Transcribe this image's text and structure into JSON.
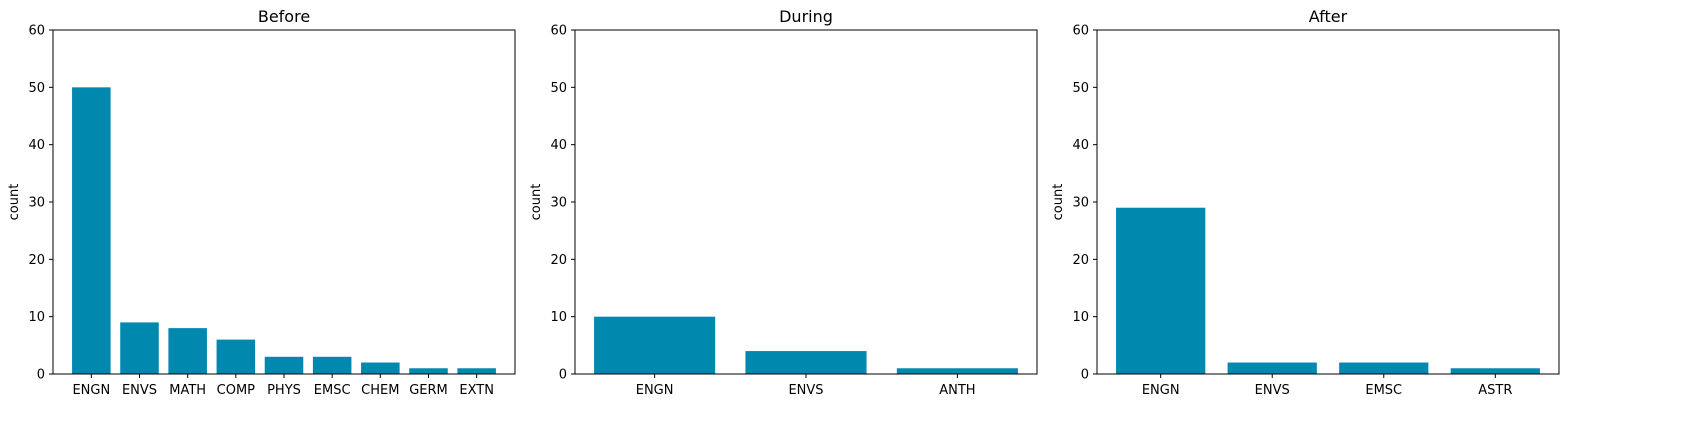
{
  "chart_data": [
    {
      "type": "bar",
      "title": "Before",
      "xlabel": "",
      "ylabel": "count",
      "ylim": [
        0,
        60
      ],
      "yticks": [
        0,
        10,
        20,
        30,
        40,
        50,
        60
      ],
      "categories": [
        "ENGN",
        "ENVS",
        "MATH",
        "COMP",
        "PHYS",
        "EMSC",
        "CHEM",
        "GERM",
        "EXTN"
      ],
      "values": [
        50,
        9,
        8,
        6,
        3,
        3,
        2,
        1,
        1
      ],
      "color": "#0088ae",
      "grid": false
    },
    {
      "type": "bar",
      "title": "During",
      "xlabel": "",
      "ylabel": "count",
      "ylim": [
        0,
        60
      ],
      "yticks": [
        0,
        10,
        20,
        30,
        40,
        50,
        60
      ],
      "categories": [
        "ENGN",
        "ENVS",
        "ANTH"
      ],
      "values": [
        10,
        4,
        1
      ],
      "color": "#0088ae",
      "grid": false
    },
    {
      "type": "bar",
      "title": "After",
      "xlabel": "",
      "ylabel": "count",
      "ylim": [
        0,
        60
      ],
      "yticks": [
        0,
        10,
        20,
        30,
        40,
        50,
        60
      ],
      "categories": [
        "ENGN",
        "ENVS",
        "EMSC",
        "ASTR"
      ],
      "values": [
        29,
        2,
        2,
        1
      ],
      "color": "#0088ae",
      "grid": false
    }
  ]
}
